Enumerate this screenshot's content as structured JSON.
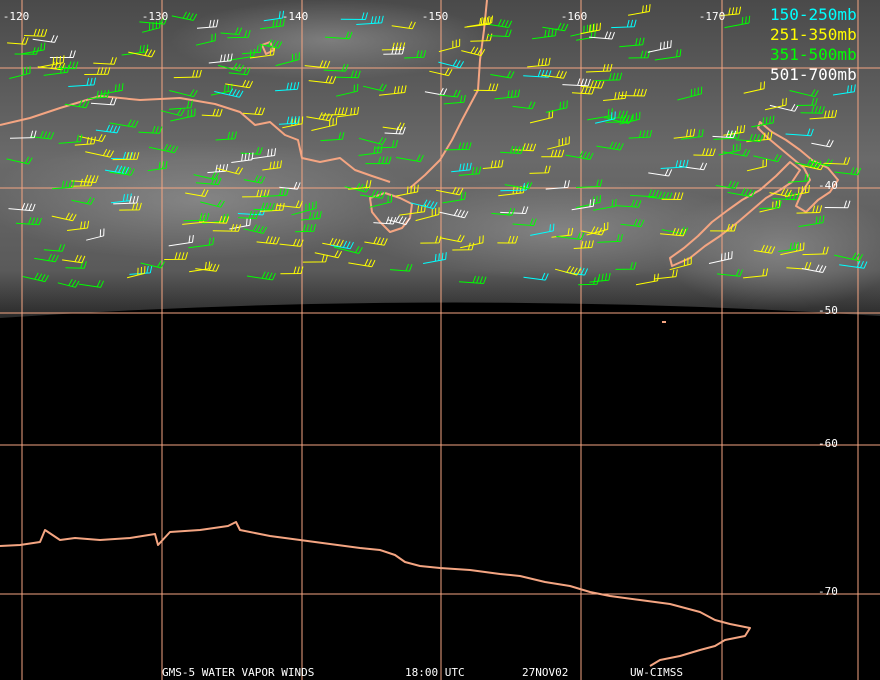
{
  "map": {
    "longitude_labels": [
      "-120",
      "-130",
      "-140",
      "-150",
      "-160",
      "-170"
    ],
    "latitude_labels": [
      "-40",
      "-50",
      "-60",
      "-70"
    ],
    "legend": [
      {
        "label": "150-250mb",
        "color": "#00ffff"
      },
      {
        "label": "251-350mb",
        "color": "#ffff00"
      },
      {
        "label": "351-500mb",
        "color": "#00ff00"
      },
      {
        "label": "501-700mb",
        "color": "#ffffff"
      }
    ],
    "footer": [
      "GMS-5 WATER VAPOR WINDS",
      "18:00 UTC",
      "27NOV02",
      "UW-CIMSS"
    ]
  }
}
